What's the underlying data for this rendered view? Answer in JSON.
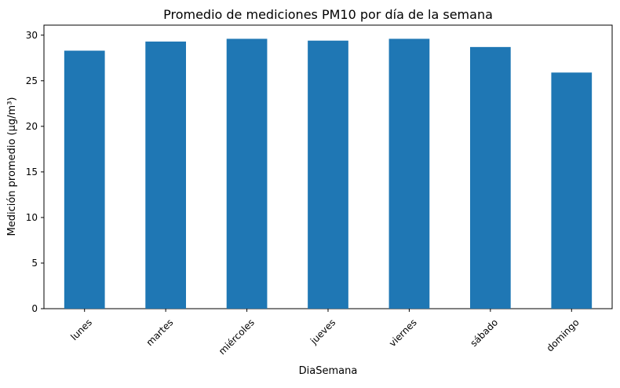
{
  "chart_data": {
    "type": "bar",
    "title": "Promedio de mediciones PM10 por día de la semana",
    "xlabel": "DiaSemana",
    "ylabel": "Medición promedio (µg/m³)",
    "categories": [
      "lunes",
      "martes",
      "miércoles",
      "jueves",
      "viernes",
      "sábado",
      "domingo"
    ],
    "values": [
      28.3,
      29.3,
      29.6,
      29.4,
      29.6,
      28.7,
      25.9
    ],
    "ylim": [
      0,
      31.1
    ],
    "yticks": [
      0,
      5,
      10,
      15,
      20,
      25,
      30
    ],
    "bar_color": "#1f77b4",
    "grid": false,
    "legend": "none"
  }
}
